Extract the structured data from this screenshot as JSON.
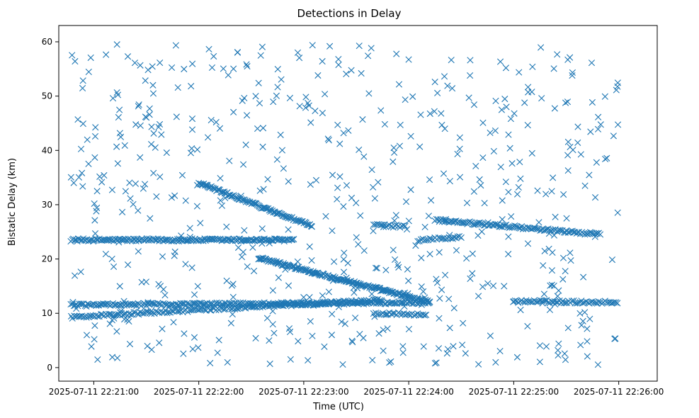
{
  "chart_data": {
    "type": "scatter",
    "title": "Detections in Delay",
    "xlabel": "Time (UTC)",
    "ylabel": "Bistatic Delay (km)",
    "marker": "x",
    "marker_color": "#1f77b4",
    "xlim_seconds": [
      -20,
      322
    ],
    "ylim": [
      -2.5,
      63
    ],
    "x_origin": "2025-07-11 22:21:00",
    "xticks": [
      {
        "t": 0,
        "label": "2025-07-11 22:21:00"
      },
      {
        "t": 60,
        "label": "2025-07-11 22:22:00"
      },
      {
        "t": 120,
        "label": "2025-07-11 22:23:00"
      },
      {
        "t": 180,
        "label": "2025-07-11 22:24:00"
      },
      {
        "t": 240,
        "label": "2025-07-11 22:25:00"
      },
      {
        "t": 300,
        "label": "2025-07-11 22:26:00"
      }
    ],
    "yticks": [
      0,
      10,
      20,
      30,
      40,
      50,
      60
    ],
    "tracks": [
      {
        "name": "constant ~23.5 km",
        "t": [
          -13,
          115
        ],
        "delay": [
          23.5,
          23.5
        ],
        "step_s": 0.7
      },
      {
        "name": "constant ~11.5 km",
        "t": [
          -13,
          192
        ],
        "delay": [
          11.5,
          12.0
        ],
        "step_s": 0.8
      },
      {
        "name": "constant ~12 km (late)",
        "t": [
          240,
          300
        ],
        "delay": [
          12.2,
          12.0
        ],
        "step_s": 0.9
      },
      {
        "name": "rising ~9-12 km",
        "t": [
          -13,
          165
        ],
        "delay": [
          9.3,
          12.5
        ],
        "step_s": 0.9
      },
      {
        "name": "descending 34 to 26 km",
        "t": [
          60,
          125
        ],
        "delay": [
          34,
          26
        ],
        "step_s": 0.6
      },
      {
        "name": "descending 20 to 12 km",
        "t": [
          94,
          192
        ],
        "delay": [
          20.2,
          12.0
        ],
        "step_s": 0.5
      },
      {
        "name": "~27 to 24.5 km (late)",
        "t": [
          195,
          290
        ],
        "delay": [
          27.2,
          24.5
        ],
        "step_s": 0.8
      },
      {
        "name": "~10 km segment",
        "t": [
          160,
          190
        ],
        "delay": [
          10.0,
          9.8
        ],
        "step_s": 1.0
      },
      {
        "name": "~24 km segment",
        "t": [
          185,
          210
        ],
        "delay": [
          23.5,
          24.0
        ],
        "step_s": 1.0
      },
      {
        "name": "~26 km segment",
        "t": [
          160,
          178
        ],
        "delay": [
          26.2,
          26.0
        ],
        "step_s": 1.0
      }
    ],
    "clutter": {
      "description": "Random false detections uniformly scattered across the delay range",
      "count": 600,
      "t_range": [
        -13,
        300
      ],
      "delay_range": [
        0.5,
        60
      ]
    }
  }
}
